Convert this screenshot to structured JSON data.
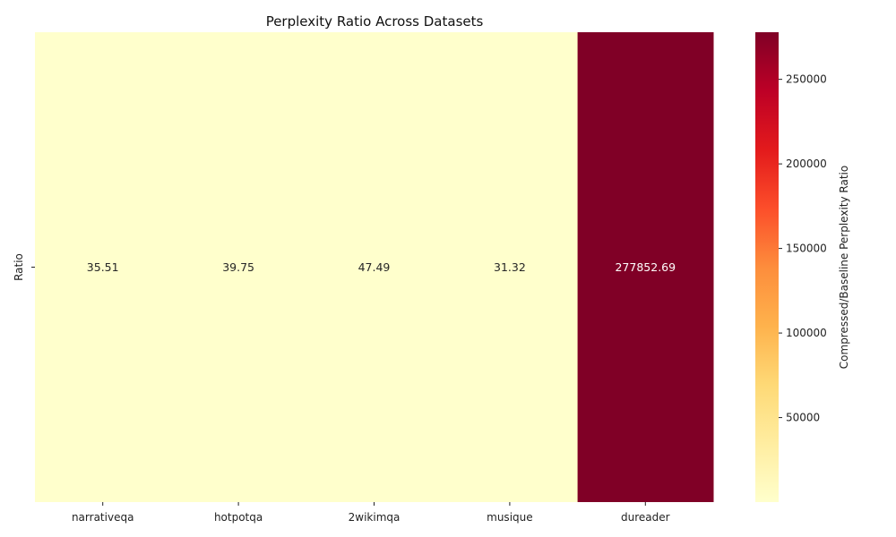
{
  "chart_data": {
    "type": "heatmap",
    "title": "Perplexity Ratio Across Datasets",
    "xlabel": "",
    "ylabel": "",
    "rows": [
      "Ratio"
    ],
    "columns": [
      "narrativeqa",
      "hotpotqa",
      "2wikimqa",
      "musique",
      "dureader"
    ],
    "values": [
      [
        35.51,
        39.75,
        47.49,
        31.32,
        277852.69
      ]
    ],
    "value_labels": [
      [
        "35.51",
        "39.75",
        "47.49",
        "31.32",
        "277852.69"
      ]
    ],
    "colorbar": {
      "label": "Compressed/Baseline Perplexity Ratio",
      "range": [
        31.32,
        277852.69
      ],
      "ticks": [
        50000,
        100000,
        150000,
        200000,
        250000
      ],
      "tick_labels": [
        "50000",
        "100000",
        "150000",
        "200000",
        "250000"
      ],
      "colormap": "YlOrRd",
      "colors": [
        "#ffffcc",
        "#ffeda0",
        "#fed976",
        "#feb24c",
        "#fd8d3c",
        "#fc4e2a",
        "#e31a1c",
        "#bd0026",
        "#800026"
      ]
    },
    "grid": false
  }
}
